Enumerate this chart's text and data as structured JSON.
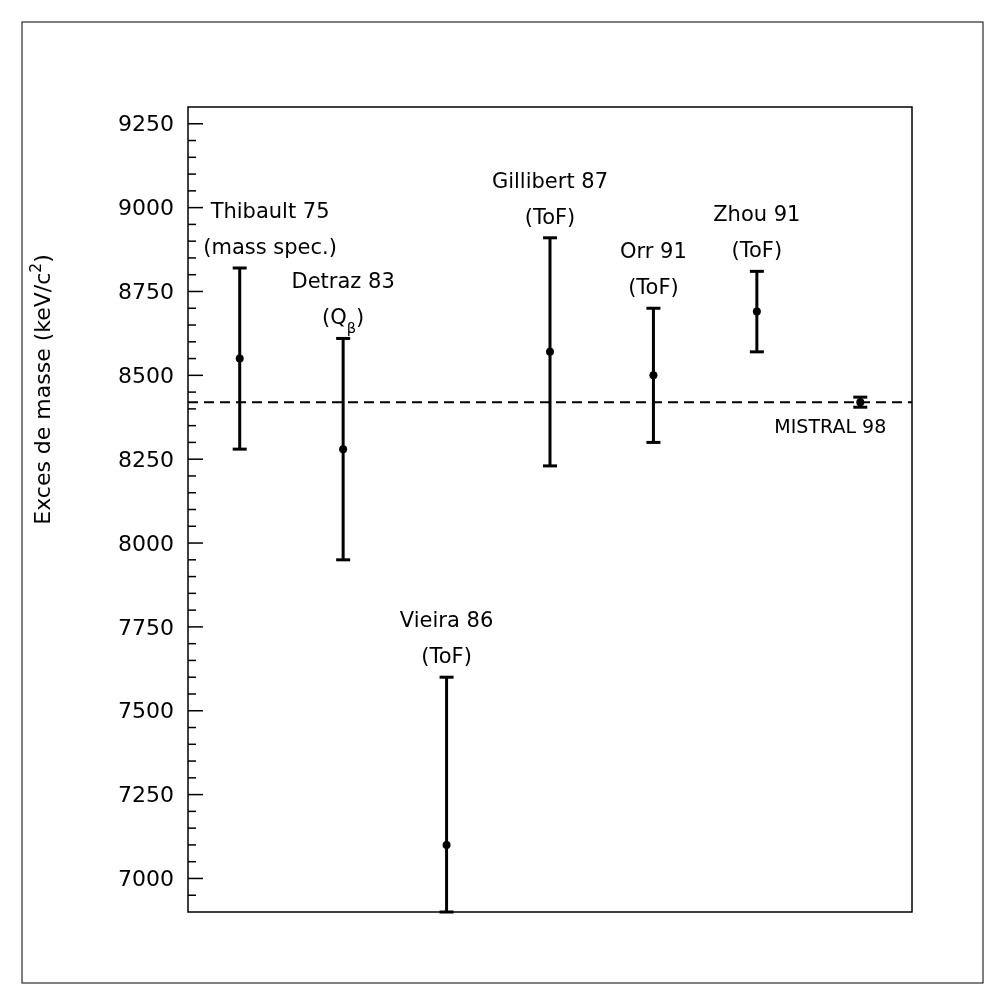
{
  "chart_data": {
    "type": "scatter",
    "ylabel": "Exces de masse (keV/c$^{2}$)",
    "categories": [
      null,
      null,
      null,
      null,
      null,
      null,
      null
    ],
    "tick_labels": "y",
    "ylim": [
      6900,
      9300
    ],
    "yticks": [
      {
        "value": 6950,
        "label": null
      },
      7000,
      {
        "value": 7050,
        "label": null
      },
      {
        "value": 7100,
        "label": null
      },
      {
        "value": 7150,
        "label": null
      },
      {
        "value": 7200,
        "label": null
      },
      7250,
      {
        "value": 7300,
        "label": null
      },
      {
        "value": 7350,
        "label": null
      },
      {
        "value": 7400,
        "label": null
      },
      {
        "value": 7450,
        "label": null
      },
      7500,
      {
        "value": 7550,
        "label": null
      },
      {
        "value": 7600,
        "label": null
      },
      {
        "value": 7650,
        "label": null
      },
      {
        "value": 7700,
        "label": null
      },
      7750,
      {
        "value": 7800,
        "label": null
      },
      {
        "value": 7850,
        "label": null
      },
      {
        "value": 7900,
        "label": null
      },
      {
        "value": 7950,
        "label": null
      },
      8000,
      {
        "value": 8050,
        "label": null
      },
      {
        "value": 8100,
        "label": null
      },
      {
        "value": 8150,
        "label": null
      },
      {
        "value": 8200,
        "label": null
      },
      8250,
      {
        "value": 8300,
        "label": null
      },
      {
        "value": 8350,
        "label": null
      },
      {
        "value": 8400,
        "label": null
      },
      {
        "value": 8450,
        "label": null
      },
      8500,
      {
        "value": 8550,
        "label": null
      },
      {
        "value": 8600,
        "label": null
      },
      {
        "value": 8650,
        "label": null
      },
      {
        "value": 8700,
        "label": null
      },
      8750,
      {
        "value": 8800,
        "label": null
      },
      {
        "value": 8850,
        "label": null
      },
      {
        "value": 8900,
        "label": null
      },
      {
        "value": 8950,
        "label": null
      },
      9000,
      {
        "value": 9050,
        "label": null
      },
      {
        "value": 9100,
        "label": null
      },
      {
        "value": 9150,
        "label": null
      },
      {
        "value": 9200,
        "label": null
      },
      9250
    ],
    "series": [
      {
        "color": "#000000",
        "values": [
          8550,
          8280,
          7100,
          8570,
          8500,
          8690,
          8420
        ],
        "errors": [
          270,
          330,
          [
            6900,
            7600
          ],
          340,
          200,
          120,
          15
        ]
      }
    ],
    "marker": "circle",
    "ref_lines": [
      {
        "axis": "y",
        "value": 8420,
        "color": "#000000",
        "line_style": "dashed"
      }
    ],
    "annotations": [
      "Thibault 75\n(mass spec.)",
      "Detraz 83\n(Q$_{β}$)",
      "Vieira 86\n(ToF)",
      "Gillibert 87\n(ToF)",
      "Orr 91\n(ToF)",
      "Zhou 91\n(ToF)",
      "MISTRAL 98"
    ]
  }
}
